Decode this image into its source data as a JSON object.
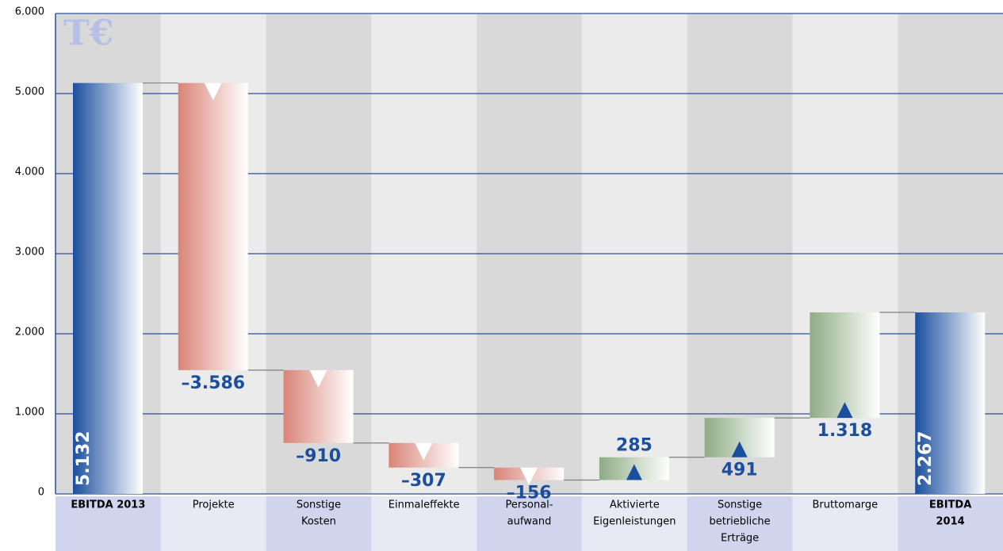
{
  "chart_data": {
    "type": "waterfall",
    "unit": "T€",
    "categories": [
      [
        "EBITDA 2013"
      ],
      [
        "Projekte"
      ],
      [
        "Sonstige",
        "Kosten"
      ],
      [
        "Einmaleffekte"
      ],
      [
        "Personal-",
        "aufwand"
      ],
      [
        "Aktivierte",
        "Eigenleistungen"
      ],
      [
        "Sonstige",
        "betriebliche",
        "Erträge"
      ],
      [
        "Bruttomarge"
      ],
      [
        "EBITDA",
        "2014"
      ]
    ],
    "measure": [
      "total",
      "relative",
      "relative",
      "relative",
      "relative",
      "relative",
      "relative",
      "relative",
      "total"
    ],
    "values": [
      5132,
      -3586,
      -910,
      -307,
      -156,
      285,
      491,
      1318,
      2267
    ],
    "value_labels": [
      "5.132",
      "–3.586",
      "–910",
      "–307",
      "–156",
      "285",
      "491",
      "1.318",
      "2.267"
    ],
    "colors": {
      "total": "#1b4f9e",
      "decrease": "#d98478",
      "increase": "#8eac84"
    },
    "ylim": [
      0,
      6000
    ],
    "yticks": [
      0,
      {
        "value": 1000,
        "label": "1.000"
      },
      {
        "value": 2000,
        "label": "2.000"
      },
      {
        "value": 3000,
        "label": "3.000"
      },
      {
        "value": 4000,
        "label": "4.000"
      },
      {
        "value": 5000,
        "label": "5.000"
      },
      {
        "value": 6000,
        "label": "6.000"
      }
    ],
    "grid": true
  }
}
